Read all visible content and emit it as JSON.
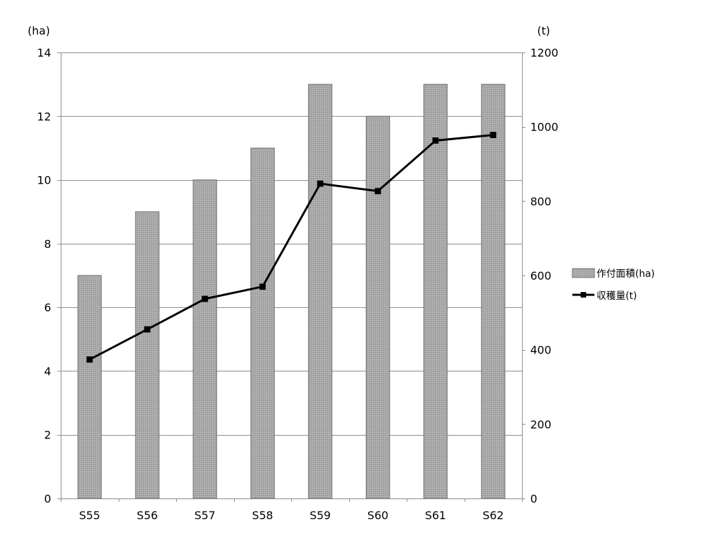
{
  "chart_data": {
    "type": "bar",
    "categories": [
      "S55",
      "S56",
      "S57",
      "S58",
      "S59",
      "S60",
      "S61",
      "S62"
    ],
    "series": [
      {
        "name": "作付面積(ha)",
        "type": "bar",
        "axis": "left",
        "values": [
          7,
          9,
          10,
          11,
          13,
          12,
          13,
          13
        ],
        "color": "#a6a6a6"
      },
      {
        "name": "収穫量(t)",
        "type": "line",
        "axis": "right",
        "values": [
          374,
          455,
          537,
          570,
          847,
          827,
          963,
          978
        ],
        "color": "#000000",
        "marker": "square"
      }
    ],
    "y_left": {
      "unit": "(ha)",
      "ylim": [
        0,
        14
      ],
      "ticks": [
        0,
        2,
        4,
        6,
        8,
        10,
        12,
        14
      ]
    },
    "y_right": {
      "unit": "(t)",
      "ylim": [
        0,
        1200
      ],
      "ticks": [
        0,
        200,
        400,
        600,
        800,
        1000,
        1200
      ]
    },
    "grid": true,
    "legend": {
      "placement": "right"
    }
  }
}
